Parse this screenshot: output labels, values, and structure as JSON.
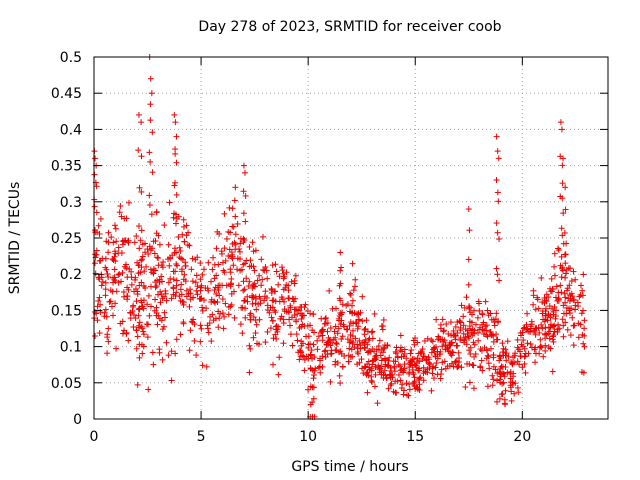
{
  "chart_data": {
    "type": "scatter",
    "title": "Day 278 of 2023, SRMTID for receiver coob",
    "xlabel": "GPS time / hours",
    "ylabel": "SRMTID / TECUs",
    "xlim": [
      0,
      24
    ],
    "ylim": [
      0,
      0.5
    ],
    "xticks": [
      0,
      5,
      10,
      15,
      20
    ],
    "xtick_labels": [
      "0",
      "5",
      "10",
      "15",
      "20"
    ],
    "yticks": [
      0,
      0.05,
      0.1,
      0.15,
      0.2,
      0.25,
      0.3,
      0.35,
      0.4,
      0.45,
      0.5
    ],
    "ytick_labels": [
      "0",
      "0.05",
      "0.1",
      "0.15",
      "0.2",
      "0.25",
      "0.3",
      "0.35",
      "0.4",
      "0.45",
      "0.5"
    ],
    "grid": true,
    "marker": "+",
    "color": "#ee0000",
    "series": [
      {
        "name": "SRMTID",
        "profile_x": [
          0,
          0.3,
          0.6,
          1.0,
          1.5,
          2.0,
          2.5,
          3.0,
          3.5,
          4.0,
          4.5,
          5.0,
          5.5,
          6.0,
          6.5,
          7.0,
          7.5,
          8.0,
          8.5,
          9.0,
          9.5,
          10.0,
          10.5,
          11.0,
          11.5,
          12.0,
          12.5,
          13.0,
          13.5,
          14.0,
          14.5,
          15.0,
          15.5,
          16.0,
          16.5,
          17.0,
          17.5,
          18.0,
          18.5,
          19.0,
          19.5,
          20.0,
          20.5,
          21.0,
          21.5,
          22.0,
          22.5,
          22.9
        ],
        "profile_center": [
          0.19,
          0.2,
          0.18,
          0.21,
          0.2,
          0.16,
          0.17,
          0.19,
          0.16,
          0.21,
          0.19,
          0.15,
          0.17,
          0.2,
          0.22,
          0.18,
          0.17,
          0.16,
          0.15,
          0.17,
          0.14,
          0.11,
          0.1,
          0.11,
          0.12,
          0.14,
          0.11,
          0.08,
          0.08,
          0.07,
          0.07,
          0.07,
          0.08,
          0.09,
          0.1,
          0.11,
          0.12,
          0.11,
          0.11,
          0.07,
          0.07,
          0.1,
          0.12,
          0.13,
          0.15,
          0.17,
          0.14,
          0.12
        ],
        "profile_spread": [
          0.08,
          0.07,
          0.06,
          0.06,
          0.06,
          0.06,
          0.07,
          0.07,
          0.07,
          0.07,
          0.06,
          0.05,
          0.05,
          0.06,
          0.06,
          0.06,
          0.05,
          0.05,
          0.04,
          0.04,
          0.04,
          0.04,
          0.03,
          0.03,
          0.04,
          0.04,
          0.04,
          0.03,
          0.03,
          0.025,
          0.025,
          0.025,
          0.03,
          0.03,
          0.03,
          0.03,
          0.04,
          0.04,
          0.04,
          0.03,
          0.03,
          0.03,
          0.03,
          0.04,
          0.05,
          0.06,
          0.05,
          0.04
        ],
        "spikes_x": [
          0.02,
          0.05,
          0.1,
          2.1,
          2.2,
          2.6,
          2.65,
          2.7,
          3.75,
          3.8,
          3.85,
          6.6,
          7.0,
          7.05,
          17.5,
          18.8,
          18.85,
          18.9,
          21.8,
          21.85,
          21.9,
          22.0,
          10.1,
          10.2,
          10.3,
          11.5,
          15.2,
          19.5
        ],
        "spikes_y": [
          0.37,
          0.36,
          0.35,
          0.42,
          0.41,
          0.5,
          0.47,
          0.45,
          0.42,
          0.41,
          0.39,
          0.32,
          0.35,
          0.34,
          0.29,
          0.39,
          0.37,
          0.36,
          0.41,
          0.4,
          0.36,
          0.32,
          0.003,
          0.003,
          0.003,
          0.23,
          0.04,
          0.025
        ]
      }
    ]
  }
}
